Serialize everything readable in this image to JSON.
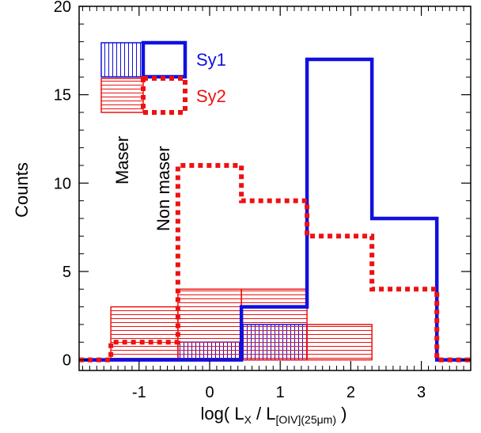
{
  "chart_data": {
    "type": "bar",
    "subtype": "step-histogram",
    "xlim": [
      -1.85,
      3.7
    ],
    "ylim": [
      -0.6,
      20
    ],
    "x_ticks": [
      -1,
      0,
      1,
      2,
      3
    ],
    "y_ticks": [
      0,
      5,
      10,
      15,
      20
    ],
    "bin_edges": [
      -1.85,
      -1.4,
      -0.45,
      0.45,
      1.38,
      2.3,
      3.22,
      3.7
    ],
    "ylabel": "Counts",
    "xlabel": {
      "prefix": "log( L",
      "sub1": "X",
      "mid": " / L",
      "sub2": "[OIV](25μm)",
      "suffix": " )"
    },
    "series": [
      {
        "name": "Sy1",
        "population": "Non maser",
        "style": "solid-step",
        "color": "#1010e0",
        "values": [
          0,
          0,
          0,
          3,
          17,
          8,
          0
        ]
      },
      {
        "name": "Sy2",
        "population": "Non maser",
        "style": "dotted-step",
        "color": "#ee1111",
        "values": [
          0,
          1,
          11,
          9,
          7,
          4,
          0
        ]
      },
      {
        "name": "Sy1",
        "population": "Maser",
        "style": "vertical-hatch",
        "color": "#1010e0",
        "values": [
          0,
          0,
          1,
          2,
          0,
          0,
          0
        ]
      },
      {
        "name": "Sy2",
        "population": "Maser",
        "style": "horizontal-hatch",
        "color": "#ee1111",
        "values": [
          0,
          3,
          4,
          4,
          2,
          0,
          0
        ]
      }
    ],
    "legend": {
      "entries": [
        {
          "label": "Sy1",
          "color": "#1010e0"
        },
        {
          "label": "Sy2",
          "color": "#ee1111"
        }
      ],
      "column_labels": [
        "Maser",
        "Non maser"
      ],
      "placement": "top-left"
    },
    "grid": false
  }
}
